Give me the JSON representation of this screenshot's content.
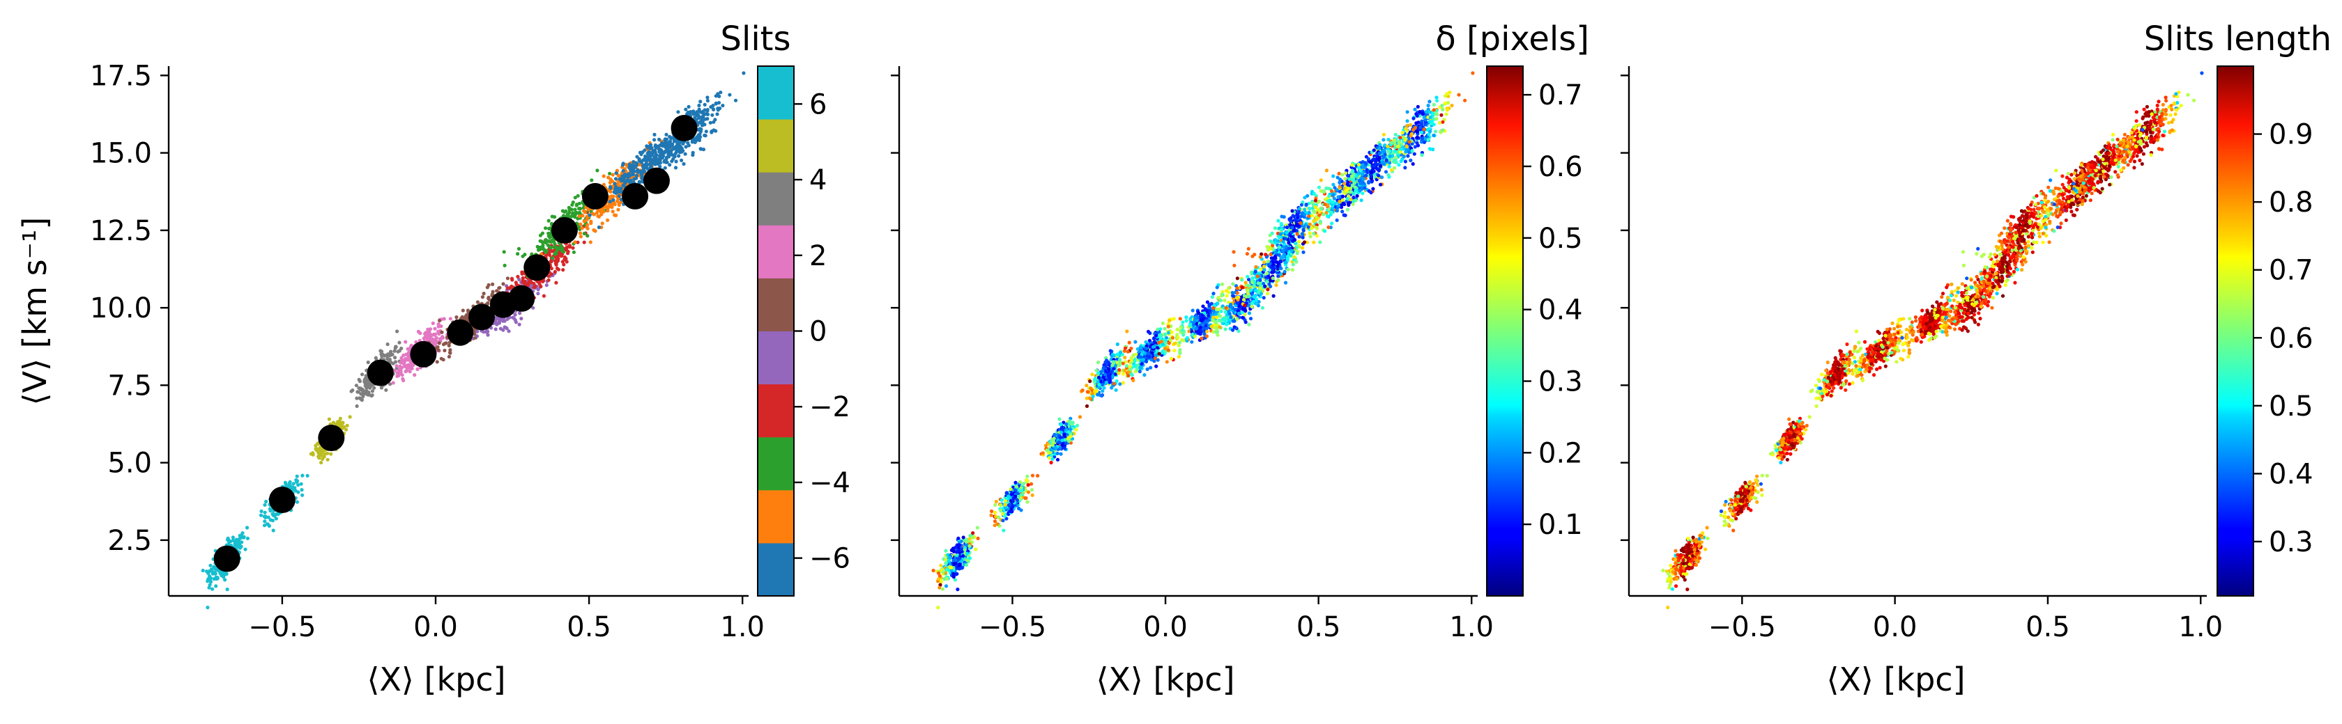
{
  "chart_data": [
    {
      "type": "scatter",
      "panel": "left",
      "xlabel": "⟨X⟩ [kpc]",
      "ylabel": "⟨V⟩ [km s⁻¹]",
      "xlim": [
        -0.87,
        1.02
      ],
      "ylim": [
        0.7,
        17.8
      ],
      "xticks": [
        -0.5,
        0.0,
        0.5,
        1.0
      ],
      "xtick_labels": [
        "−0.5",
        "0.0",
        "0.5",
        "1.0"
      ],
      "yticks": [
        2.5,
        5.0,
        7.5,
        10.0,
        12.5,
        15.0,
        17.5
      ],
      "ytick_labels": [
        "2.5",
        "5.0",
        "7.5",
        "10.0",
        "12.5",
        "15.0",
        "17.5"
      ],
      "color_by": "slit index",
      "colorbar": {
        "title": "Slits",
        "type": "discrete",
        "range": [
          -7,
          7
        ],
        "colors": [
          "#1f77b4",
          "#ff7f0e",
          "#2ca02c",
          "#d62728",
          "#9467bd",
          "#8c564b",
          "#e377c2",
          "#7f7f7f",
          "#bcbd22",
          "#17becf"
        ],
        "ticks": [
          -6,
          -4,
          -2,
          0,
          2,
          4,
          6
        ],
        "tick_labels": [
          "−6",
          "−4",
          "−2",
          "0",
          "2",
          "4",
          "6"
        ]
      },
      "scatter_clusters": [
        {
          "x": -0.68,
          "y": 1.9,
          "spread": [
            0.05,
            0.45
          ],
          "color": "#17becf"
        },
        {
          "x": -0.5,
          "y": 3.8,
          "spread": [
            0.04,
            0.35
          ],
          "color": "#17becf"
        },
        {
          "x": -0.34,
          "y": 5.8,
          "spread": [
            0.04,
            0.35
          ],
          "color": "#bcbd22"
        },
        {
          "x": -0.19,
          "y": 7.9,
          "spread": [
            0.05,
            0.45
          ],
          "color": "#7f7f7f"
        },
        {
          "x": -0.05,
          "y": 8.6,
          "spread": [
            0.07,
            0.45
          ],
          "color": "#e377c2"
        },
        {
          "x": 0.12,
          "y": 9.6,
          "spread": [
            0.09,
            0.45
          ],
          "color": "#8c564b"
        },
        {
          "x": 0.25,
          "y": 10.1,
          "spread": [
            0.1,
            0.5
          ],
          "color": "#9467bd"
        },
        {
          "x": 0.35,
          "y": 11.3,
          "spread": [
            0.1,
            0.5
          ],
          "color": "#d62728"
        },
        {
          "x": 0.42,
          "y": 12.6,
          "spread": [
            0.1,
            0.6
          ],
          "color": "#2ca02c"
        },
        {
          "x": 0.6,
          "y": 13.8,
          "spread": [
            0.12,
            0.6
          ],
          "color": "#ff7f0e"
        },
        {
          "x": 0.82,
          "y": 15.6,
          "spread": [
            0.1,
            0.6
          ],
          "color": "#1f77b4"
        },
        {
          "x": 0.68,
          "y": 14.6,
          "spread": [
            0.1,
            0.5
          ],
          "color": "#1f77b4"
        }
      ],
      "highlight_points": {
        "x": [
          -0.68,
          -0.5,
          -0.34,
          -0.18,
          -0.04,
          0.08,
          0.15,
          0.22,
          0.28,
          0.33,
          0.42,
          0.52,
          0.65,
          0.72,
          0.81
        ],
        "y": [
          1.9,
          3.8,
          5.8,
          7.9,
          8.5,
          9.2,
          9.7,
          10.1,
          10.3,
          11.3,
          12.5,
          13.6,
          13.6,
          14.1,
          15.8
        ],
        "color": "#000000"
      }
    },
    {
      "type": "scatter",
      "panel": "middle",
      "xlabel": "⟨X⟩ [kpc]",
      "xlim": [
        -0.87,
        1.02
      ],
      "ylim": [
        0.7,
        17.8
      ],
      "xticks": [
        -0.5,
        0.0,
        0.5,
        1.0
      ],
      "xtick_labels": [
        "−0.5",
        "0.0",
        "0.5",
        "1.0"
      ],
      "color_by": "δ [pixels]",
      "colorbar": {
        "title": "δ [pixels]",
        "type": "continuous",
        "colormap": "jet",
        "range": [
          0.0,
          0.74
        ],
        "ticks": [
          0.1,
          0.2,
          0.3,
          0.4,
          0.5,
          0.6,
          0.7
        ],
        "tick_labels": [
          "0.1",
          "0.2",
          "0.3",
          "0.4",
          "0.5",
          "0.6",
          "0.7"
        ]
      }
    },
    {
      "type": "scatter",
      "panel": "right",
      "xlabel": "⟨X⟩ [kpc]",
      "xlim": [
        -0.87,
        1.02
      ],
      "ylim": [
        0.7,
        17.8
      ],
      "xticks": [
        -0.5,
        0.0,
        0.5,
        1.0
      ],
      "xtick_labels": [
        "−0.5",
        "0.0",
        "0.5",
        "1.0"
      ],
      "color_by": "slits length",
      "colorbar": {
        "title": "Slits length",
        "type": "continuous",
        "colormap": "jet",
        "range": [
          0.22,
          1.0
        ],
        "ticks": [
          0.3,
          0.4,
          0.5,
          0.6,
          0.7,
          0.8,
          0.9
        ],
        "tick_labels": [
          "0.3",
          "0.4",
          "0.5",
          "0.6",
          "0.7",
          "0.8",
          "0.9"
        ]
      }
    }
  ]
}
